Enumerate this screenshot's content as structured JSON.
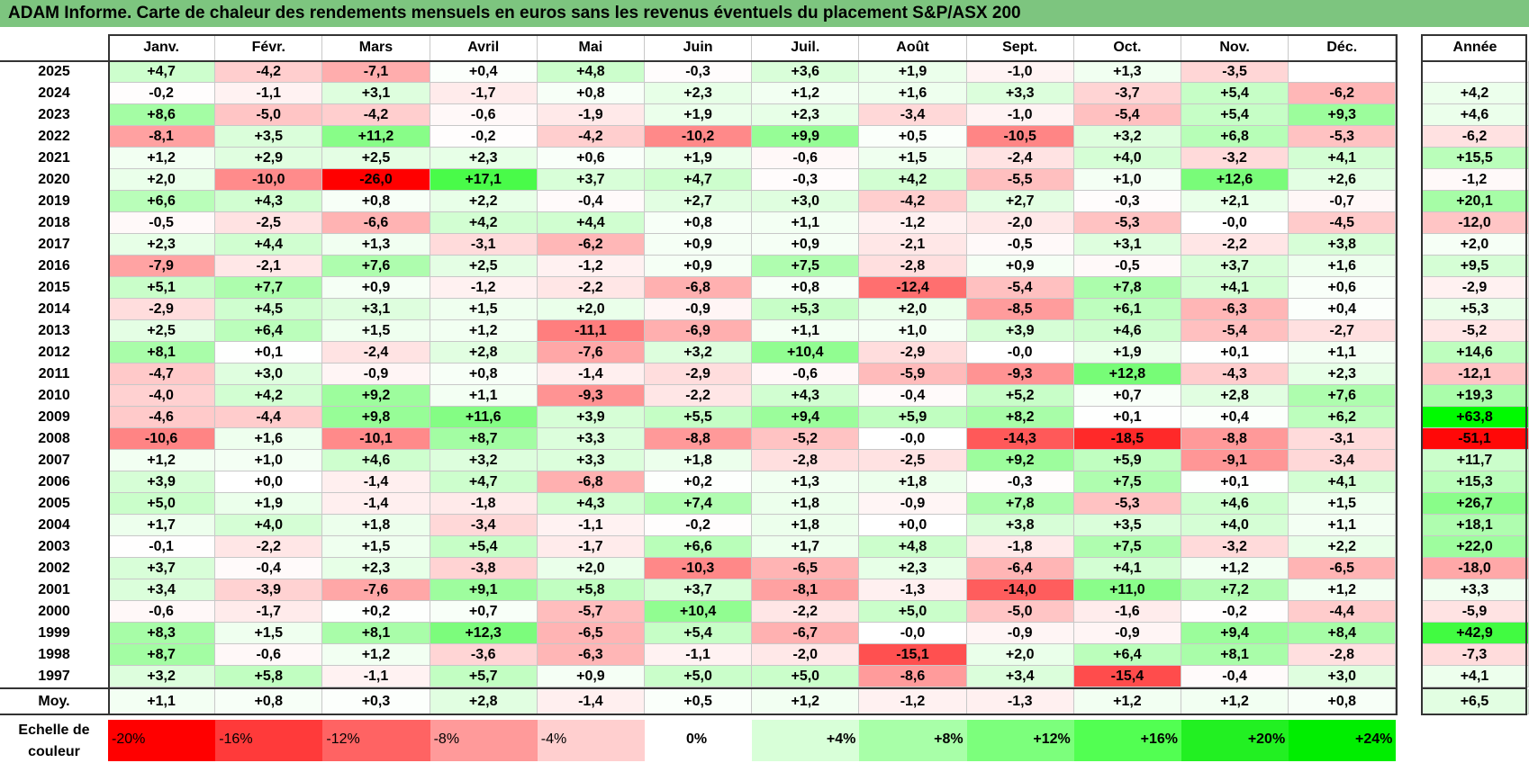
{
  "title": "ADAM Informe. Carte de chaleur des rendements mensuels en euros sans les revenus éventuels du placement S&P/ASX 200",
  "chart_data": {
    "type": "heatmap",
    "title": "ADAM Informe. Carte de chaleur des rendements mensuels en euros sans les revenus éventuels du placement S&P/ASX 200",
    "columns": [
      "Janv.",
      "Févr.",
      "Mars",
      "Avril",
      "Mai",
      "Juin",
      "Juil.",
      "Août",
      "Sept.",
      "Oct.",
      "Nov.",
      "Déc."
    ],
    "annual_header": "Année",
    "rows": [
      {
        "year": "2025",
        "values": [
          "+4,7",
          "-4,2",
          "-7,1",
          "+0,4",
          "+4,8",
          "-0,3",
          "+3,6",
          "+1,9",
          "-1,0",
          "+1,3",
          "-3,5",
          ""
        ],
        "annual": ""
      },
      {
        "year": "2024",
        "values": [
          "-0,2",
          "-1,1",
          "+3,1",
          "-1,7",
          "+0,8",
          "+2,3",
          "+1,2",
          "+1,6",
          "+3,3",
          "-3,7",
          "+5,4",
          "-6,2"
        ],
        "annual": "+4,2"
      },
      {
        "year": "2023",
        "values": [
          "+8,6",
          "-5,0",
          "-4,2",
          "-0,6",
          "-1,9",
          "+1,9",
          "+2,3",
          "-3,4",
          "-1,0",
          "-5,4",
          "+5,4",
          "+9,3"
        ],
        "annual": "+4,6"
      },
      {
        "year": "2022",
        "values": [
          "-8,1",
          "+3,5",
          "+11,2",
          "-0,2",
          "-4,2",
          "-10,2",
          "+9,9",
          "+0,5",
          "-10,5",
          "+3,2",
          "+6,8",
          "-5,3"
        ],
        "annual": "-6,2"
      },
      {
        "year": "2021",
        "values": [
          "+1,2",
          "+2,9",
          "+2,5",
          "+2,3",
          "+0,6",
          "+1,9",
          "-0,6",
          "+1,5",
          "-2,4",
          "+4,0",
          "-3,2",
          "+4,1"
        ],
        "annual": "+15,5"
      },
      {
        "year": "2020",
        "values": [
          "+2,0",
          "-10,0",
          "-26,0",
          "+17,1",
          "+3,7",
          "+4,7",
          "-0,3",
          "+4,2",
          "-5,5",
          "+1,0",
          "+12,6",
          "+2,6"
        ],
        "annual": "-1,2"
      },
      {
        "year": "2019",
        "values": [
          "+6,6",
          "+4,3",
          "+0,8",
          "+2,2",
          "-0,4",
          "+2,7",
          "+3,0",
          "-4,2",
          "+2,7",
          "-0,3",
          "+2,1",
          "-0,7"
        ],
        "annual": "+20,1"
      },
      {
        "year": "2018",
        "values": [
          "-0,5",
          "-2,5",
          "-6,6",
          "+4,2",
          "+4,4",
          "+0,8",
          "+1,1",
          "-1,2",
          "-2,0",
          "-5,3",
          "-0,0",
          "-4,5"
        ],
        "annual": "-12,0"
      },
      {
        "year": "2017",
        "values": [
          "+2,3",
          "+4,4",
          "+1,3",
          "-3,1",
          "-6,2",
          "+0,9",
          "+0,9",
          "-2,1",
          "-0,5",
          "+3,1",
          "-2,2",
          "+3,8"
        ],
        "annual": "+2,0"
      },
      {
        "year": "2016",
        "values": [
          "-7,9",
          "-2,1",
          "+7,6",
          "+2,5",
          "-1,2",
          "+0,9",
          "+7,5",
          "-2,8",
          "+0,9",
          "-0,5",
          "+3,7",
          "+1,6"
        ],
        "annual": "+9,5"
      },
      {
        "year": "2015",
        "values": [
          "+5,1",
          "+7,7",
          "+0,9",
          "-1,2",
          "-2,2",
          "-6,8",
          "+0,8",
          "-12,4",
          "-5,4",
          "+7,8",
          "+4,1",
          "+0,6"
        ],
        "annual": "-2,9"
      },
      {
        "year": "2014",
        "values": [
          "-2,9",
          "+4,5",
          "+3,1",
          "+1,5",
          "+2,0",
          "-0,9",
          "+5,3",
          "+2,0",
          "-8,5",
          "+6,1",
          "-6,3",
          "+0,4"
        ],
        "annual": "+5,3"
      },
      {
        "year": "2013",
        "values": [
          "+2,5",
          "+6,4",
          "+1,5",
          "+1,2",
          "-11,1",
          "-6,9",
          "+1,1",
          "+1,0",
          "+3,9",
          "+4,6",
          "-5,4",
          "-2,7"
        ],
        "annual": "-5,2"
      },
      {
        "year": "2012",
        "values": [
          "+8,1",
          "+0,1",
          "-2,4",
          "+2,8",
          "-7,6",
          "+3,2",
          "+10,4",
          "-2,9",
          "-0,0",
          "+1,9",
          "+0,1",
          "+1,1"
        ],
        "annual": "+14,6"
      },
      {
        "year": "2011",
        "values": [
          "-4,7",
          "+3,0",
          "-0,9",
          "+0,8",
          "-1,4",
          "-2,9",
          "-0,6",
          "-5,9",
          "-9,3",
          "+12,8",
          "-4,3",
          "+2,3"
        ],
        "annual": "-12,1"
      },
      {
        "year": "2010",
        "values": [
          "-4,0",
          "+4,2",
          "+9,2",
          "+1,1",
          "-9,3",
          "-2,2",
          "+4,3",
          "-0,4",
          "+5,2",
          "+0,7",
          "+2,8",
          "+7,6"
        ],
        "annual": "+19,3"
      },
      {
        "year": "2009",
        "values": [
          "-4,6",
          "-4,4",
          "+9,8",
          "+11,6",
          "+3,9",
          "+5,5",
          "+9,4",
          "+5,9",
          "+8,2",
          "+0,1",
          "+0,4",
          "+6,2"
        ],
        "annual": "+63,8"
      },
      {
        "year": "2008",
        "values": [
          "-10,6",
          "+1,6",
          "-10,1",
          "+8,7",
          "+3,3",
          "-8,8",
          "-5,2",
          "-0,0",
          "-14,3",
          "-18,5",
          "-8,8",
          "-3,1"
        ],
        "annual": "-51,1"
      },
      {
        "year": "2007",
        "values": [
          "+1,2",
          "+1,0",
          "+4,6",
          "+3,2",
          "+3,3",
          "+1,8",
          "-2,8",
          "-2,5",
          "+9,2",
          "+5,9",
          "-9,1",
          "-3,4"
        ],
        "annual": "+11,7"
      },
      {
        "year": "2006",
        "values": [
          "+3,9",
          "+0,0",
          "-1,4",
          "+4,7",
          "-6,8",
          "+0,2",
          "+1,3",
          "+1,8",
          "-0,3",
          "+7,5",
          "+0,1",
          "+4,1"
        ],
        "annual": "+15,3"
      },
      {
        "year": "2005",
        "values": [
          "+5,0",
          "+1,9",
          "-1,4",
          "-1,8",
          "+4,3",
          "+7,4",
          "+1,8",
          "-0,9",
          "+7,8",
          "-5,3",
          "+4,6",
          "+1,5"
        ],
        "annual": "+26,7"
      },
      {
        "year": "2004",
        "values": [
          "+1,7",
          "+4,0",
          "+1,8",
          "-3,4",
          "-1,1",
          "-0,2",
          "+1,8",
          "+0,0",
          "+3,8",
          "+3,5",
          "+4,0",
          "+1,1"
        ],
        "annual": "+18,1"
      },
      {
        "year": "2003",
        "values": [
          "-0,1",
          "-2,2",
          "+1,5",
          "+5,4",
          "-1,7",
          "+6,6",
          "+1,7",
          "+4,8",
          "-1,8",
          "+7,5",
          "-3,2",
          "+2,2"
        ],
        "annual": "+22,0"
      },
      {
        "year": "2002",
        "values": [
          "+3,7",
          "-0,4",
          "+2,3",
          "-3,8",
          "+2,0",
          "-10,3",
          "-6,5",
          "+2,3",
          "-6,4",
          "+4,1",
          "+1,2",
          "-6,5"
        ],
        "annual": "-18,0"
      },
      {
        "year": "2001",
        "values": [
          "+3,4",
          "-3,9",
          "-7,6",
          "+9,1",
          "+5,8",
          "+3,7",
          "-8,1",
          "-1,3",
          "-14,0",
          "+11,0",
          "+7,2",
          "+1,2"
        ],
        "annual": "+3,3"
      },
      {
        "year": "2000",
        "values": [
          "-0,6",
          "-1,7",
          "+0,2",
          "+0,7",
          "-5,7",
          "+10,4",
          "-2,2",
          "+5,0",
          "-5,0",
          "-1,6",
          "-0,2",
          "-4,4"
        ],
        "annual": "-5,9"
      },
      {
        "year": "1999",
        "values": [
          "+8,3",
          "+1,5",
          "+8,1",
          "+12,3",
          "-6,5",
          "+5,4",
          "-6,7",
          "-0,0",
          "-0,9",
          "-0,9",
          "+9,4",
          "+8,4"
        ],
        "annual": "+42,9"
      },
      {
        "year": "1998",
        "values": [
          "+8,7",
          "-0,6",
          "+1,2",
          "-3,6",
          "-6,3",
          "-1,1",
          "-2,0",
          "-15,1",
          "+2,0",
          "+6,4",
          "+8,1",
          "-2,8"
        ],
        "annual": "-7,3"
      },
      {
        "year": "1997",
        "values": [
          "+3,2",
          "+5,8",
          "-1,1",
          "+5,7",
          "+0,9",
          "+5,0",
          "+5,0",
          "-8,6",
          "+3,4",
          "-15,4",
          "-0,4",
          "+3,0"
        ],
        "annual": "+4,1"
      }
    ],
    "average": {
      "label": "Moy.",
      "values": [
        "+1,1",
        "+0,8",
        "+0,3",
        "+2,8",
        "-1,4",
        "+0,5",
        "+1,2",
        "-1,2",
        "-1,3",
        "+1,2",
        "+1,2",
        "+0,8"
      ],
      "annual": "+6,5"
    },
    "scale": {
      "label": "Echelle de couleur",
      "stops": [
        {
          "text": "-20%",
          "color": "#ff0000"
        },
        {
          "text": "-16%",
          "color": "#ff3a3a"
        },
        {
          "text": "-12%",
          "color": "#ff6363"
        },
        {
          "text": "-8%",
          "color": "#ff9a9a"
        },
        {
          "text": "-4%",
          "color": "#ffcfcf"
        },
        {
          "text": "0%",
          "color": "#ffffff"
        },
        {
          "text": "+4%",
          "color": "#d8ffd8"
        },
        {
          "text": "+8%",
          "color": "#a8ffa8"
        },
        {
          "text": "+12%",
          "color": "#7cff7c"
        },
        {
          "text": "+16%",
          "color": "#52ff52"
        },
        {
          "text": "+20%",
          "color": "#22f022"
        },
        {
          "text": "+24%",
          "color": "#00ee00"
        }
      ]
    },
    "annual_scale_factor": 2.4
  }
}
